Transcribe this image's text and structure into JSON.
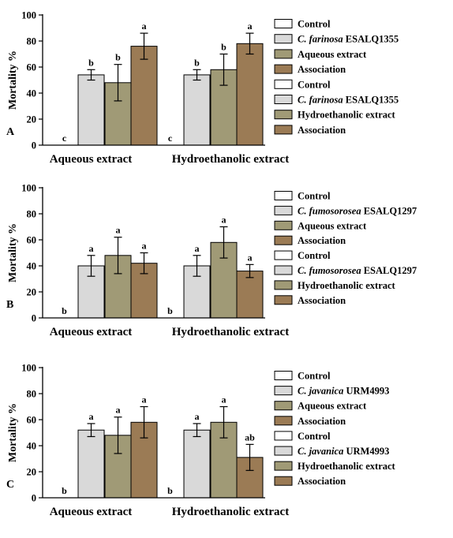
{
  "colors": {
    "control": "#ffffff",
    "fungus": "#d9d9d9",
    "extract": "#a09a76",
    "association": "#9b7b55"
  },
  "chart_data": [
    {
      "type": "bar",
      "panel_label": "A",
      "ylabel": "Mortality %",
      "ylim": [
        0,
        100
      ],
      "yticks": [
        "0",
        "20",
        "40",
        "60",
        "80",
        "100"
      ],
      "categories": [
        "Aqueous extract",
        "Hydroethanolic extract"
      ],
      "series": [
        {
          "name": "Control",
          "values": [
            0,
            0
          ],
          "errors": [
            0,
            0
          ],
          "letters": [
            "c",
            "c"
          ]
        },
        {
          "name": "C. farinosa ESALQ1355",
          "values": [
            54,
            54
          ],
          "errors": [
            4,
            4
          ],
          "letters": [
            "b",
            "b"
          ]
        },
        {
          "name": "Aqueous extract / Hydroethanolic extract",
          "values": [
            48,
            58
          ],
          "errors": [
            14,
            12
          ],
          "letters": [
            "b",
            "b"
          ]
        },
        {
          "name": "Association",
          "values": [
            76,
            78
          ],
          "errors": [
            10,
            8
          ],
          "letters": [
            "a",
            "a"
          ]
        }
      ],
      "legend": [
        {
          "species": "",
          "rest": "Control",
          "color": "control"
        },
        {
          "species": "C. farinosa",
          "rest": "ESALQ1355",
          "color": "fungus"
        },
        {
          "species": "",
          "rest": "Aqueous extract",
          "color": "extract"
        },
        {
          "species": "",
          "rest": "Association",
          "color": "association"
        },
        {
          "species": "",
          "rest": "Control",
          "color": "control"
        },
        {
          "species": "C. farinosa",
          "rest": "ESALQ1355",
          "color": "fungus"
        },
        {
          "species": "",
          "rest": "Hydroethanolic extract",
          "color": "extract"
        },
        {
          "species": "",
          "rest": "Association",
          "color": "association"
        }
      ],
      "legend_position": "right"
    },
    {
      "type": "bar",
      "panel_label": "B",
      "ylabel": "Mortality %",
      "ylim": [
        0,
        100
      ],
      "yticks": [
        "0",
        "20",
        "40",
        "60",
        "80",
        "100"
      ],
      "categories": [
        "Aqueous extract",
        "Hydroethanolic extract"
      ],
      "series": [
        {
          "name": "Control",
          "values": [
            0,
            0
          ],
          "errors": [
            0,
            0
          ],
          "letters": [
            "b",
            "b"
          ]
        },
        {
          "name": "C. fumosorosea ESALQ1297",
          "values": [
            40,
            40
          ],
          "errors": [
            8,
            8
          ],
          "letters": [
            "a",
            "a"
          ]
        },
        {
          "name": "Aqueous extract / Hydroethanolic extract",
          "values": [
            48,
            58
          ],
          "errors": [
            14,
            12
          ],
          "letters": [
            "a",
            "a"
          ]
        },
        {
          "name": "Association",
          "values": [
            42,
            36
          ],
          "errors": [
            8,
            5
          ],
          "letters": [
            "a",
            "a"
          ]
        }
      ],
      "legend": [
        {
          "species": "",
          "rest": "Control",
          "color": "control"
        },
        {
          "species": "C. fumosorosea",
          "rest": "ESALQ1297",
          "color": "fungus"
        },
        {
          "species": "",
          "rest": "Aqueous extract",
          "color": "extract"
        },
        {
          "species": "",
          "rest": "Association",
          "color": "association"
        },
        {
          "species": "",
          "rest": "Control",
          "color": "control"
        },
        {
          "species": "C. fumosorosea",
          "rest": "ESALQ1297",
          "color": "fungus"
        },
        {
          "species": "",
          "rest": "Hydroethanolic extract",
          "color": "extract"
        },
        {
          "species": "",
          "rest": "Association",
          "color": "association"
        }
      ],
      "legend_position": "right"
    },
    {
      "type": "bar",
      "panel_label": "C",
      "ylabel": "Mortality %",
      "ylim": [
        0,
        100
      ],
      "yticks": [
        "0",
        "20",
        "40",
        "60",
        "80",
        "100"
      ],
      "categories": [
        "Aqueous extract",
        "Hydroethanolic extract"
      ],
      "series": [
        {
          "name": "Control",
          "values": [
            0,
            0
          ],
          "errors": [
            0,
            0
          ],
          "letters": [
            "b",
            "b"
          ]
        },
        {
          "name": "C. javanica URM4993",
          "values": [
            52,
            52
          ],
          "errors": [
            5,
            5
          ],
          "letters": [
            "a",
            "a"
          ]
        },
        {
          "name": "Aqueous extract / Hydroethanolic extract",
          "values": [
            48,
            58
          ],
          "errors": [
            14,
            12
          ],
          "letters": [
            "a",
            "a"
          ]
        },
        {
          "name": "Association",
          "values": [
            58,
            31
          ],
          "errors": [
            12,
            10
          ],
          "letters": [
            "a",
            "ab"
          ]
        }
      ],
      "legend": [
        {
          "species": "",
          "rest": "Control",
          "color": "control"
        },
        {
          "species": "C. javanica",
          "rest": "URM4993",
          "color": "fungus"
        },
        {
          "species": "",
          "rest": "Aqueous extract",
          "color": "extract"
        },
        {
          "species": "",
          "rest": "Association",
          "color": "association"
        },
        {
          "species": "",
          "rest": "Control",
          "color": "control"
        },
        {
          "species": "C. javanica",
          "rest": "URM4993",
          "color": "fungus"
        },
        {
          "species": "",
          "rest": "Hydroethanolic extract",
          "color": "extract"
        },
        {
          "species": "",
          "rest": "Association",
          "color": "association"
        }
      ],
      "legend_position": "right"
    }
  ]
}
